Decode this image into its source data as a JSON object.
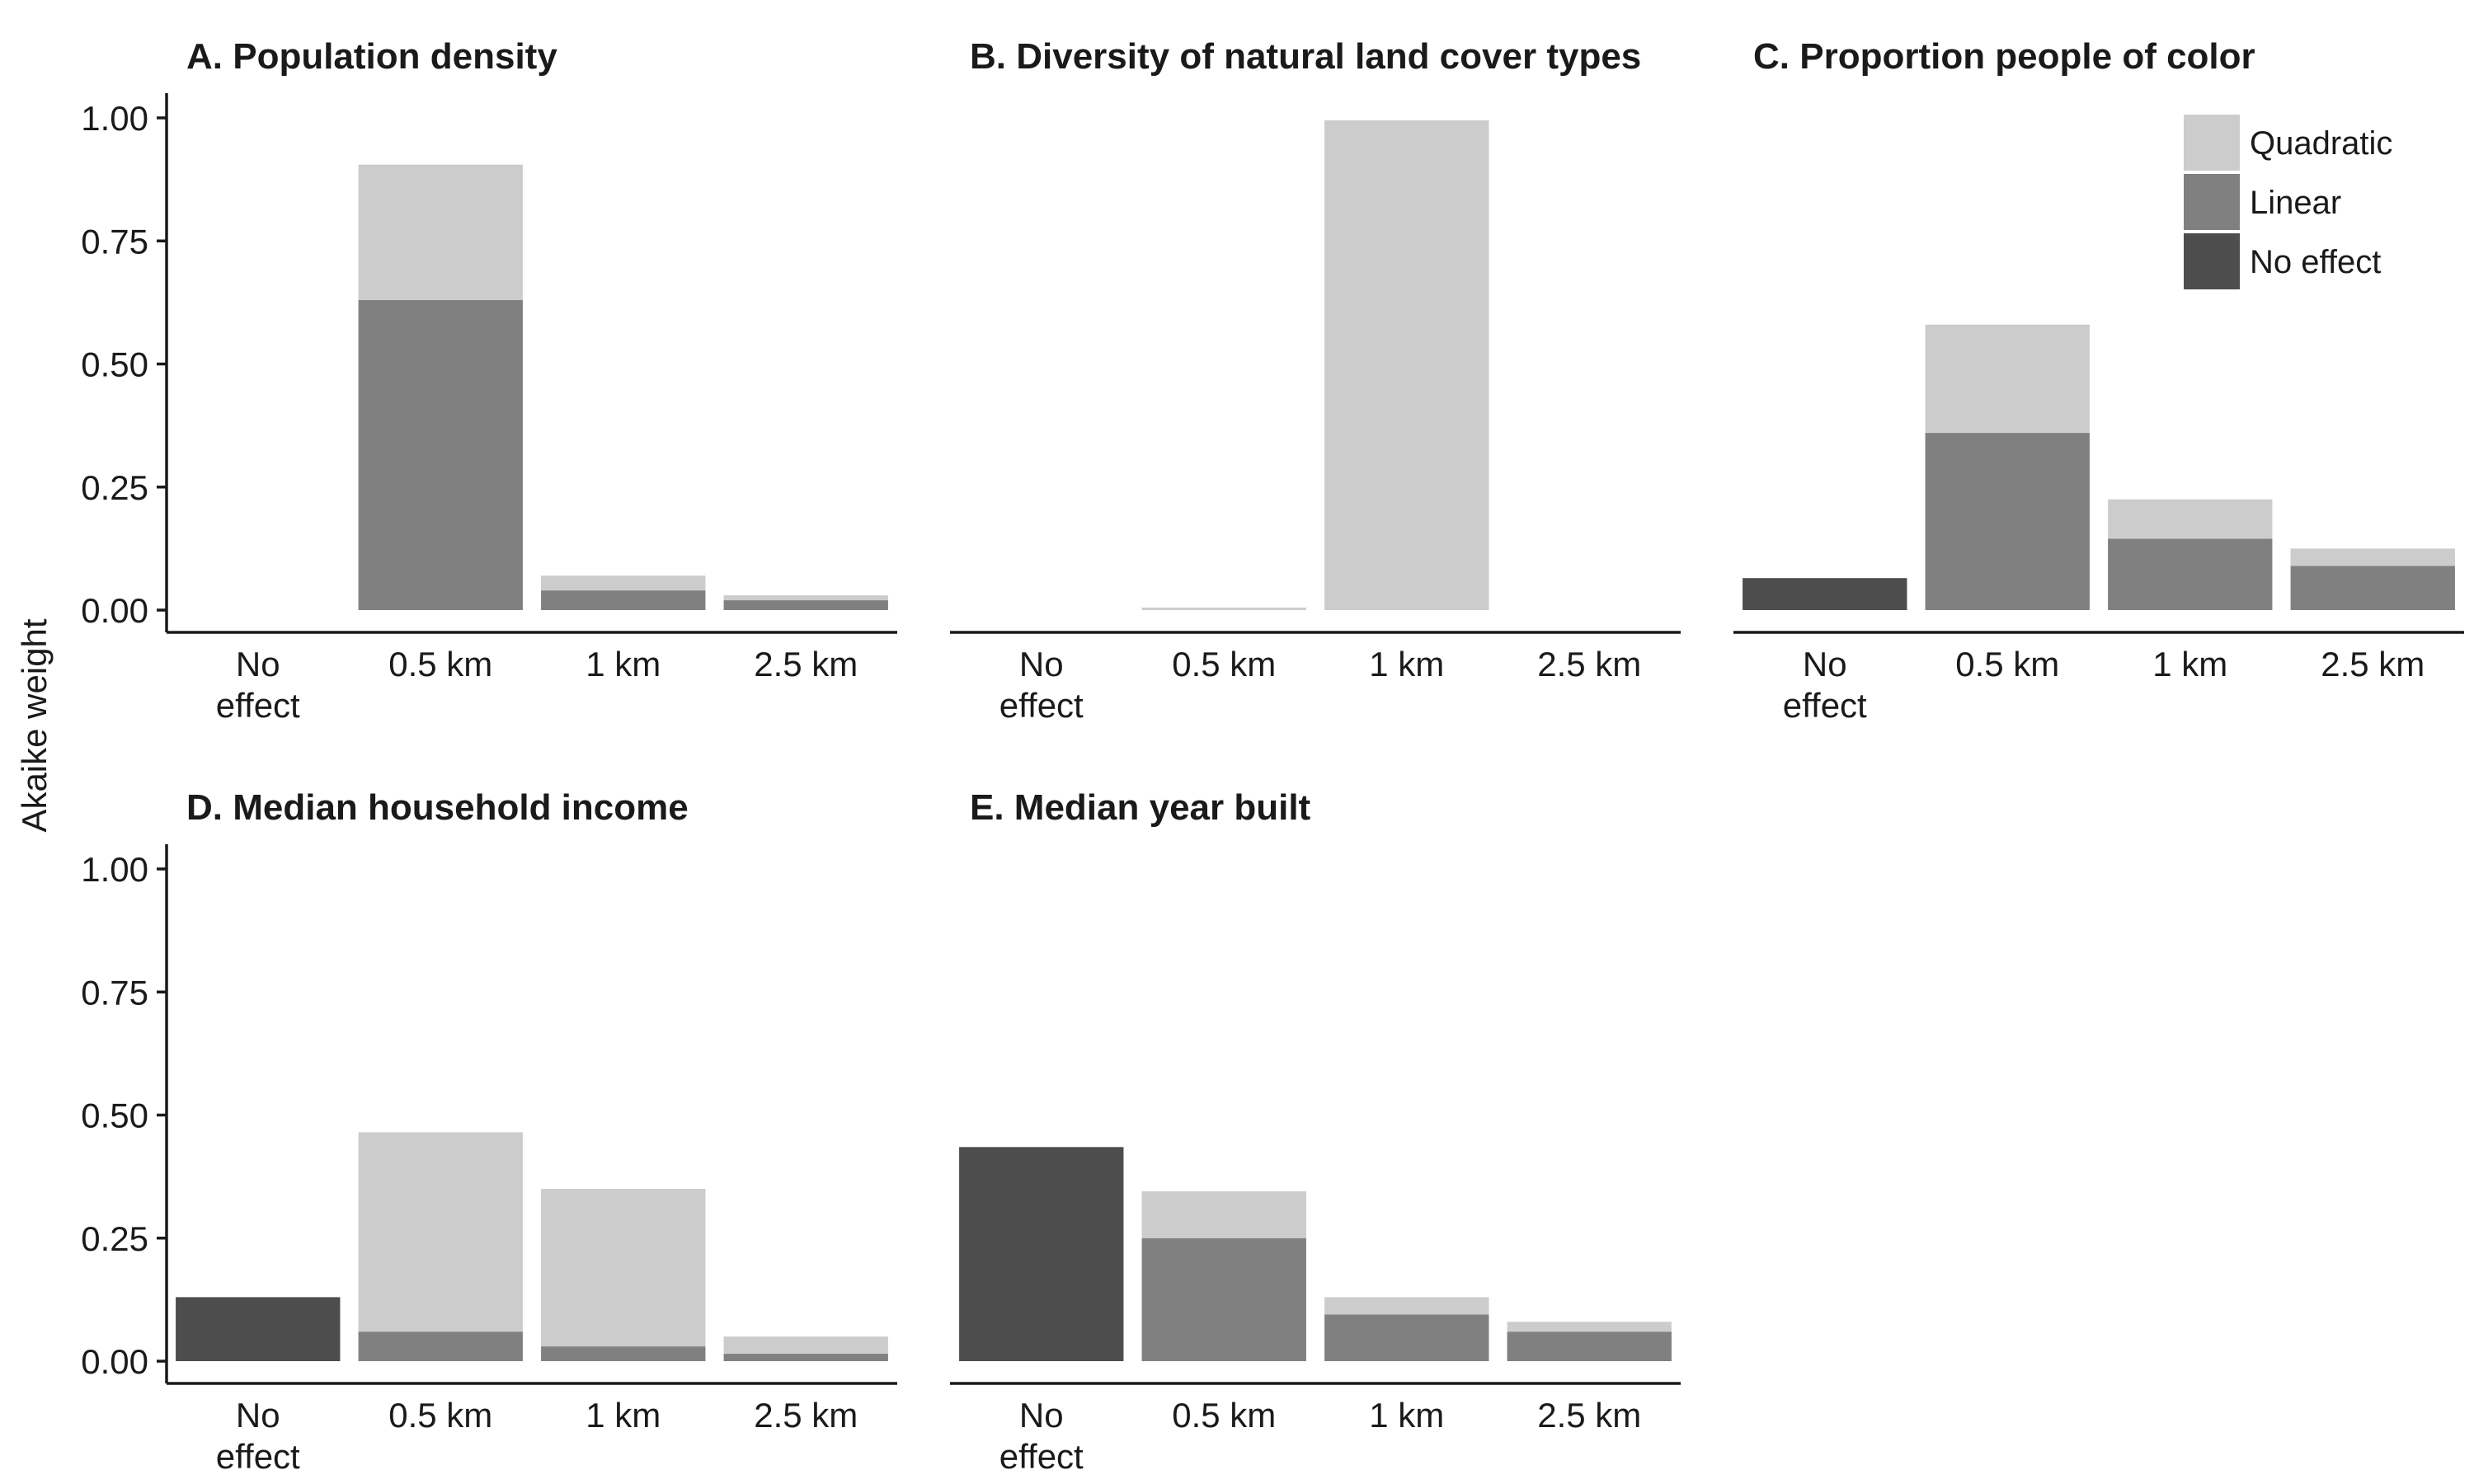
{
  "y_axis_label": "Akaike weight",
  "colors": {
    "quadratic": "#cccccc",
    "linear": "#808080",
    "no_effect": "#4d4d4d"
  },
  "chart_data": [
    {
      "type": "bar",
      "stacked": true,
      "title": "A. Population density",
      "categories": [
        "No\neffect",
        "0.5 km",
        "1 km",
        "2.5 km"
      ],
      "ylim": [
        0,
        1
      ],
      "yticks": [
        "0.00",
        "0.25",
        "0.50",
        "0.75",
        "1.00"
      ],
      "series": [
        {
          "name": "No effect",
          "values": [
            0,
            0,
            0,
            0
          ]
        },
        {
          "name": "Linear",
          "values": [
            0,
            0.63,
            0.04,
            0.02
          ]
        },
        {
          "name": "Quadratic",
          "values": [
            0,
            0.275,
            0.03,
            0.01
          ]
        }
      ]
    },
    {
      "type": "bar",
      "stacked": true,
      "title": "B. Diversity of natural land cover types",
      "categories": [
        "No\neffect",
        "0.5 km",
        "1 km",
        "2.5 km"
      ],
      "ylim": [
        0,
        1
      ],
      "yticks": [],
      "series": [
        {
          "name": "No effect",
          "values": [
            0,
            0,
            0,
            0
          ]
        },
        {
          "name": "Linear",
          "values": [
            0,
            0,
            0,
            0
          ]
        },
        {
          "name": "Quadratic",
          "values": [
            0,
            0.005,
            0.995,
            0
          ]
        }
      ]
    },
    {
      "type": "bar",
      "stacked": true,
      "title": "C. Proportion people of color",
      "categories": [
        "No\neffect",
        "0.5 km",
        "1 km",
        "2.5 km"
      ],
      "ylim": [
        0,
        1
      ],
      "yticks": [],
      "legend": {
        "position": "top-right",
        "entries": [
          "Quadratic",
          "Linear",
          "No effect"
        ]
      },
      "series": [
        {
          "name": "No effect",
          "values": [
            0.065,
            0,
            0,
            0
          ]
        },
        {
          "name": "Linear",
          "values": [
            0,
            0.36,
            0.145,
            0.09
          ]
        },
        {
          "name": "Quadratic",
          "values": [
            0,
            0.22,
            0.08,
            0.035
          ]
        }
      ]
    },
    {
      "type": "bar",
      "stacked": true,
      "title": "D. Median household income",
      "categories": [
        "No\neffect",
        "0.5 km",
        "1 km",
        "2.5 km"
      ],
      "ylim": [
        0,
        1
      ],
      "yticks": [
        "0.00",
        "0.25",
        "0.50",
        "0.75",
        "1.00"
      ],
      "series": [
        {
          "name": "No effect",
          "values": [
            0.13,
            0,
            0,
            0
          ]
        },
        {
          "name": "Linear",
          "values": [
            0,
            0.06,
            0.03,
            0.015
          ]
        },
        {
          "name": "Quadratic",
          "values": [
            0,
            0.405,
            0.32,
            0.035
          ]
        }
      ]
    },
    {
      "type": "bar",
      "stacked": true,
      "title": "E. Median year built",
      "categories": [
        "No\neffect",
        "0.5 km",
        "1 km",
        "2.5 km"
      ],
      "ylim": [
        0,
        1
      ],
      "yticks": [],
      "series": [
        {
          "name": "No effect",
          "values": [
            0.435,
            0,
            0,
            0
          ]
        },
        {
          "name": "Linear",
          "values": [
            0,
            0.25,
            0.095,
            0.06
          ]
        },
        {
          "name": "Quadratic",
          "values": [
            0,
            0.095,
            0.035,
            0.02
          ]
        }
      ]
    }
  ]
}
